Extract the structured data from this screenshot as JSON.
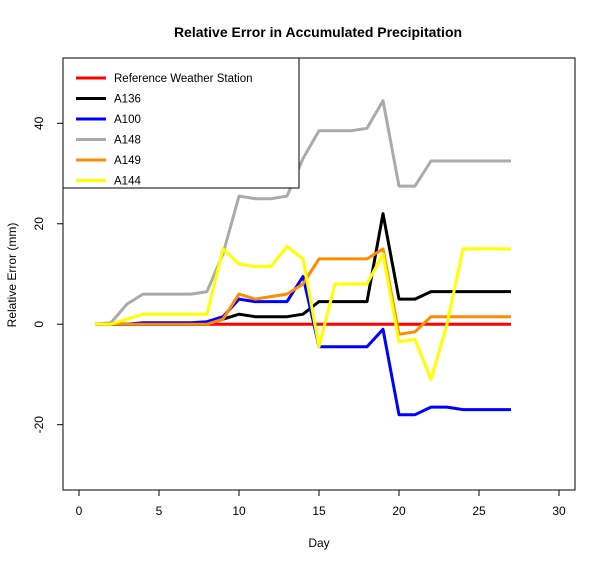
{
  "chart_data": {
    "type": "line",
    "title": "Relative Error in Accumulated Precipitation",
    "xlabel": "Day",
    "ylabel": "Relative Error (mm)",
    "xlim": [
      -1,
      31
    ],
    "ylim": [
      -33,
      53
    ],
    "x_ticks": [
      0,
      5,
      10,
      15,
      20,
      25,
      30
    ],
    "y_ticks": [
      -20,
      0,
      20,
      40
    ],
    "grid": false,
    "legend_position": "top-left",
    "x": [
      1,
      2,
      3,
      4,
      5,
      6,
      7,
      8,
      9,
      10,
      11,
      12,
      13,
      14,
      15,
      16,
      17,
      18,
      19,
      20,
      21,
      22,
      23,
      24,
      25,
      26,
      27
    ],
    "series": [
      {
        "name": "Reference Weather Station",
        "color": "#ff0000",
        "values": [
          0,
          0,
          0,
          0,
          0,
          0,
          0,
          0,
          0,
          0,
          0,
          0,
          0,
          0,
          0,
          0,
          0,
          0,
          0,
          0,
          0,
          0,
          0,
          0,
          0,
          0,
          0
        ]
      },
      {
        "name": "A136",
        "color": "#000000",
        "values": [
          0,
          0,
          0,
          0,
          0,
          0,
          0,
          0,
          1,
          2,
          1.5,
          1.5,
          1.5,
          2,
          4.5,
          4.5,
          4.5,
          4.5,
          22,
          5,
          5,
          6.5,
          6.5,
          6.5,
          6.5,
          6.5,
          6.5
        ]
      },
      {
        "name": "A100",
        "color": "#0000ff",
        "values": [
          0,
          0,
          0,
          0.3,
          0.3,
          0.3,
          0.3,
          0.5,
          1.5,
          5,
          4.5,
          4.5,
          4.5,
          9.5,
          -4.5,
          -4.5,
          -4.5,
          -4.5,
          -1,
          -18,
          -18,
          -16.5,
          -16.5,
          -17,
          -17,
          -17,
          -17
        ]
      },
      {
        "name": "A148",
        "color": "#aaaaaa",
        "values": [
          0,
          0.3,
          4,
          6,
          6,
          6,
          6,
          6.5,
          14,
          25.5,
          25,
          25,
          25.5,
          33,
          38.5,
          38.5,
          38.5,
          39,
          44.5,
          27.5,
          27.5,
          32.5,
          32.5,
          32.5,
          32.5,
          32.5,
          32.5
        ]
      },
      {
        "name": "A149",
        "color": "#ff8c00",
        "values": [
          0,
          0,
          0,
          0,
          0,
          0,
          0,
          0,
          1,
          6,
          5,
          5.5,
          6,
          8,
          13,
          13,
          13,
          13,
          15,
          -2,
          -1.5,
          1.5,
          1.5,
          1.5,
          1.5,
          1.5,
          1.5
        ]
      },
      {
        "name": "A144",
        "color": "#ffff00",
        "values": [
          0,
          0,
          1,
          2,
          2,
          2,
          2,
          2,
          15,
          12,
          11.5,
          11.5,
          15.5,
          13,
          -4.5,
          8,
          8,
          8,
          14,
          -3.5,
          -3,
          -11,
          0,
          15,
          15,
          15,
          15
        ]
      }
    ]
  }
}
